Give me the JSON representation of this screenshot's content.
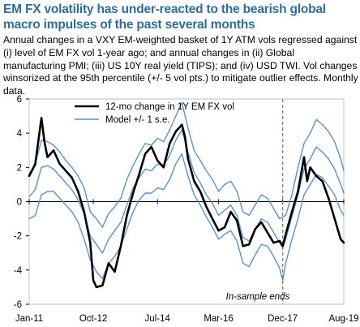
{
  "chart_data": {
    "type": "line",
    "title": "EM FX volatility has under-reacted to the bearish global macro impulses of the past several months",
    "subtitle": "Annual changes in a VXY EM-weighted basket of 1Y ATM vols regressed against (i) level of EM FX vol 1-year ago; and annual changes in (ii) Global manufacturing PMI; (iii) US 10Y real yield (TIPS); and (iv) USD TWI. Vol changes winsorized at the 95th percentile (+/- 5 vol pts.) to mitigate outlier effects. Monthly data.",
    "x_tick_labels": [
      "Jan-11",
      "Oct-12",
      "Jul-14",
      "Mar-16",
      "Dec-17",
      "Aug-19"
    ],
    "x_tick_values": [
      0,
      21,
      42,
      62,
      83,
      103
    ],
    "ylim": [
      -6,
      6
    ],
    "y_ticks": [
      -6,
      -4,
      -2,
      0,
      2,
      4,
      6
    ],
    "legend": [
      "12-mo change in 1Y EM FX vol",
      "Model +/- 1 s.e."
    ],
    "legend_position": "top",
    "annotation": "In-sample ends",
    "in_sample_end_x": 83,
    "colors": {
      "actual": "#000000",
      "model": "#5b8fd4",
      "divider": "#7f7f7f"
    },
    "series": [
      {
        "name": "12-mo change in 1Y EM FX vol",
        "points": [
          [
            0,
            1.5
          ],
          [
            2,
            2.2
          ],
          [
            4,
            4.9
          ],
          [
            5,
            3.5
          ],
          [
            6,
            2.6
          ],
          [
            8,
            3.0
          ],
          [
            10,
            2.2
          ],
          [
            12,
            1.8
          ],
          [
            14,
            1.4
          ],
          [
            16,
            0.6
          ],
          [
            18,
            -0.6
          ],
          [
            20,
            -2.4
          ],
          [
            21,
            -4.6
          ],
          [
            22,
            -5.0
          ],
          [
            24,
            -4.9
          ],
          [
            26,
            -3.6
          ],
          [
            28,
            -4.1
          ],
          [
            30,
            -2.6
          ],
          [
            32,
            -0.8
          ],
          [
            34,
            0.5
          ],
          [
            36,
            1.6
          ],
          [
            38,
            2.8
          ],
          [
            40,
            3.2
          ],
          [
            42,
            2.4
          ],
          [
            44,
            2.0
          ],
          [
            46,
            3.4
          ],
          [
            48,
            4.1
          ],
          [
            50,
            4.5
          ],
          [
            51,
            3.8
          ],
          [
            52,
            2.5
          ],
          [
            54,
            1.2
          ],
          [
            56,
            0.6
          ],
          [
            58,
            -0.3
          ],
          [
            60,
            -1.0
          ],
          [
            62,
            -1.7
          ],
          [
            64,
            -1.5
          ],
          [
            66,
            -0.6
          ],
          [
            68,
            -1.1
          ],
          [
            70,
            -2.6
          ],
          [
            72,
            -2.5
          ],
          [
            74,
            -1.6
          ],
          [
            76,
            -1.2
          ],
          [
            78,
            -1.8
          ],
          [
            80,
            -2.4
          ],
          [
            82,
            -2.3
          ],
          [
            83,
            -2.6
          ],
          [
            84,
            -1.9
          ],
          [
            86,
            -0.6
          ],
          [
            88,
            0.6
          ],
          [
            90,
            2.6
          ],
          [
            91,
            1.2
          ],
          [
            92,
            2.0
          ],
          [
            94,
            1.5
          ],
          [
            96,
            1.2
          ],
          [
            98,
            0.2
          ],
          [
            100,
            -1.0
          ],
          [
            102,
            -2.2
          ],
          [
            103,
            -2.4
          ]
        ]
      },
      {
        "name": "Model +/- 1 s.e.",
        "band": "upper",
        "points": [
          [
            0,
            1.6
          ],
          [
            2,
            2.2
          ],
          [
            4,
            3.6
          ],
          [
            6,
            3.5
          ],
          [
            8,
            3.3
          ],
          [
            10,
            2.9
          ],
          [
            12,
            2.4
          ],
          [
            14,
            2.0
          ],
          [
            16,
            1.5
          ],
          [
            18,
            0.8
          ],
          [
            20,
            -0.6
          ],
          [
            22,
            -1.0
          ],
          [
            24,
            -1.5
          ],
          [
            26,
            -0.7
          ],
          [
            28,
            -0.3
          ],
          [
            30,
            0.2
          ],
          [
            32,
            1.3
          ],
          [
            34,
            2.1
          ],
          [
            36,
            2.8
          ],
          [
            38,
            3.4
          ],
          [
            40,
            3.3
          ],
          [
            42,
            3.7
          ],
          [
            44,
            3.5
          ],
          [
            46,
            4.2
          ],
          [
            48,
            5.0
          ],
          [
            50,
            5.8
          ],
          [
            52,
            4.3
          ],
          [
            54,
            3.0
          ],
          [
            56,
            2.4
          ],
          [
            58,
            1.8
          ],
          [
            60,
            1.3
          ],
          [
            62,
            0.6
          ],
          [
            64,
            1.0
          ],
          [
            66,
            1.2
          ],
          [
            68,
            0.6
          ],
          [
            70,
            -0.6
          ],
          [
            72,
            -0.8
          ],
          [
            74,
            -0.2
          ],
          [
            76,
            0.4
          ],
          [
            78,
            0.2
          ],
          [
            80,
            -0.4
          ],
          [
            82,
            -1.0
          ],
          [
            84,
            -0.8
          ],
          [
            86,
            0.4
          ],
          [
            88,
            2.0
          ],
          [
            90,
            3.4
          ],
          [
            92,
            4.0
          ],
          [
            94,
            4.8
          ],
          [
            96,
            4.5
          ],
          [
            98,
            4.1
          ],
          [
            100,
            3.5
          ],
          [
            102,
            2.5
          ],
          [
            103,
            1.8
          ]
        ]
      },
      {
        "name": "Model +/- 1 s.e.",
        "band": "lower",
        "points": [
          [
            0,
            -1.0
          ],
          [
            2,
            -0.8
          ],
          [
            4,
            0.4
          ],
          [
            6,
            0.6
          ],
          [
            8,
            0.6
          ],
          [
            10,
            0.2
          ],
          [
            12,
            -0.2
          ],
          [
            14,
            -0.6
          ],
          [
            16,
            -1.2
          ],
          [
            18,
            -2.2
          ],
          [
            20,
            -3.4
          ],
          [
            22,
            -4.1
          ],
          [
            24,
            -4.5
          ],
          [
            26,
            -3.6
          ],
          [
            28,
            -3.2
          ],
          [
            30,
            -2.6
          ],
          [
            32,
            -1.6
          ],
          [
            34,
            -0.6
          ],
          [
            36,
            0.1
          ],
          [
            38,
            0.5
          ],
          [
            40,
            0.5
          ],
          [
            42,
            0.8
          ],
          [
            44,
            0.7
          ],
          [
            46,
            1.3
          ],
          [
            48,
            2.2
          ],
          [
            50,
            2.8
          ],
          [
            52,
            1.5
          ],
          [
            54,
            0.4
          ],
          [
            56,
            -0.2
          ],
          [
            58,
            -0.9
          ],
          [
            60,
            -1.5
          ],
          [
            62,
            -2.2
          ],
          [
            64,
            -1.9
          ],
          [
            66,
            -1.7
          ],
          [
            68,
            -2.3
          ],
          [
            70,
            -3.6
          ],
          [
            72,
            -3.8
          ],
          [
            74,
            -3.1
          ],
          [
            76,
            -2.5
          ],
          [
            78,
            -2.6
          ],
          [
            80,
            -3.2
          ],
          [
            82,
            -3.9
          ],
          [
            83,
            -4.6
          ],
          [
            84,
            -3.6
          ],
          [
            86,
            -2.2
          ],
          [
            88,
            -1.0
          ],
          [
            90,
            0.4
          ],
          [
            92,
            1.0
          ],
          [
            94,
            1.6
          ],
          [
            96,
            1.4
          ],
          [
            98,
            0.9
          ],
          [
            100,
            0.4
          ],
          [
            102,
            -0.5
          ],
          [
            103,
            -0.8
          ]
        ]
      },
      {
        "name": "Model +/- 1 s.e.",
        "band": "central",
        "points": [
          [
            0,
            0.3
          ],
          [
            2,
            0.7
          ],
          [
            4,
            2.0
          ],
          [
            6,
            2.1
          ],
          [
            8,
            1.9
          ],
          [
            10,
            1.5
          ],
          [
            12,
            1.1
          ],
          [
            14,
            0.7
          ],
          [
            16,
            0.1
          ],
          [
            18,
            -0.7
          ],
          [
            20,
            -2.0
          ],
          [
            22,
            -2.5
          ],
          [
            24,
            -3.0
          ],
          [
            26,
            -2.2
          ],
          [
            28,
            -1.7
          ],
          [
            30,
            -1.2
          ],
          [
            32,
            -0.2
          ],
          [
            34,
            0.8
          ],
          [
            36,
            1.4
          ],
          [
            38,
            1.9
          ],
          [
            40,
            1.8
          ],
          [
            42,
            2.2
          ],
          [
            44,
            2.1
          ],
          [
            46,
            2.7
          ],
          [
            48,
            3.6
          ],
          [
            50,
            4.2
          ],
          [
            52,
            2.9
          ],
          [
            54,
            1.7
          ],
          [
            56,
            1.1
          ],
          [
            58,
            0.4
          ],
          [
            60,
            -0.1
          ],
          [
            62,
            -0.8
          ],
          [
            64,
            -0.5
          ],
          [
            66,
            -0.2
          ],
          [
            68,
            -0.8
          ],
          [
            70,
            -2.1
          ],
          [
            72,
            -2.3
          ],
          [
            74,
            -1.6
          ],
          [
            76,
            -1.0
          ],
          [
            78,
            -1.2
          ],
          [
            80,
            -1.8
          ],
          [
            82,
            -2.4
          ],
          [
            83,
            -2.7
          ],
          [
            84,
            -2.2
          ],
          [
            86,
            -0.9
          ],
          [
            88,
            0.4
          ],
          [
            90,
            1.9
          ],
          [
            92,
            2.5
          ],
          [
            94,
            3.2
          ],
          [
            96,
            2.9
          ],
          [
            98,
            2.5
          ],
          [
            100,
            1.9
          ],
          [
            102,
            1.0
          ],
          [
            103,
            0.5
          ]
        ]
      }
    ]
  }
}
